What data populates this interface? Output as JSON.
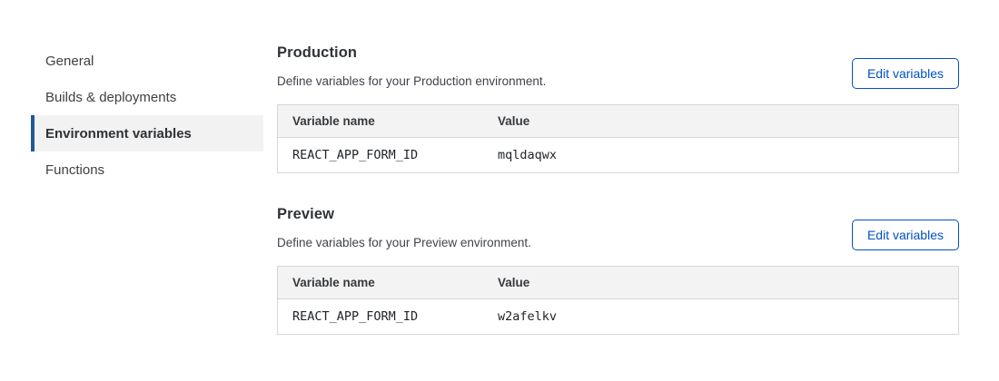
{
  "sidebar": {
    "items": [
      {
        "label": "General",
        "selected": false
      },
      {
        "label": "Builds & deployments",
        "selected": false
      },
      {
        "label": "Environment variables",
        "selected": true
      },
      {
        "label": "Functions",
        "selected": false
      }
    ]
  },
  "sections": [
    {
      "title": "Production",
      "description": "Define variables for your Production environment.",
      "button_label": "Edit variables",
      "table": {
        "columns": {
          "name": "Variable name",
          "value": "Value"
        },
        "rows": [
          {
            "name": "REACT_APP_FORM_ID",
            "value": "mqldaqwx"
          }
        ]
      }
    },
    {
      "title": "Preview",
      "description": "Define variables for your Preview environment.",
      "button_label": "Edit variables",
      "table": {
        "columns": {
          "name": "Variable name",
          "value": "Value"
        },
        "rows": [
          {
            "name": "REACT_APP_FORM_ID",
            "value": "w2afelkv"
          }
        ]
      }
    }
  ],
  "colors": {
    "accent_blue": "#1e5a96",
    "button_blue": "#0051c3",
    "selected_item_bg": "#f2f2f2",
    "table_header_bg": "#f3f3f3",
    "table_border": "#d6d6d6"
  }
}
